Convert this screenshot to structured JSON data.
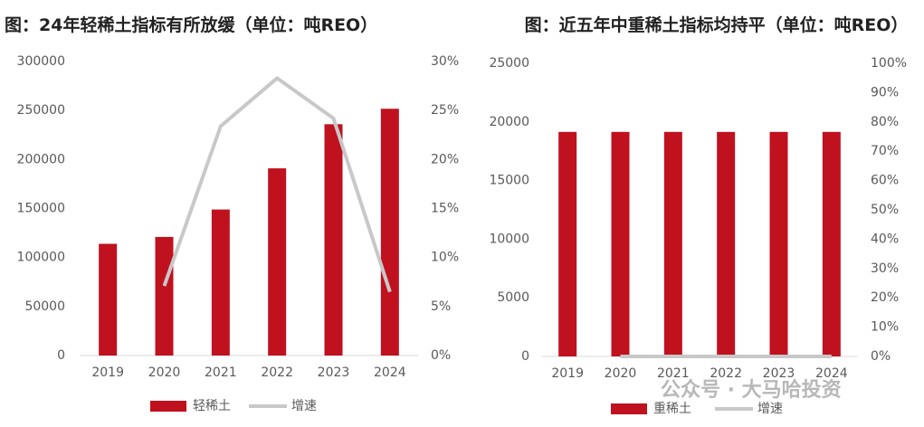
{
  "chart_data": [
    {
      "type": "bar",
      "title": "图：24年轻稀土指标有所放缓（单位：吨REO）",
      "categories": [
        "2019",
        "2020",
        "2021",
        "2022",
        "2023",
        "2024"
      ],
      "series": [
        {
          "name": "轻稀土",
          "color": "#c0111f",
          "values": [
            114000,
            121000,
            149000,
            191000,
            236000,
            251800
          ]
        },
        {
          "name": "增速",
          "color": "#c8c8c8",
          "axis": "y2",
          "values": [
            null,
            7.1,
            23.4,
            28.3,
            24.2,
            6.5
          ]
        }
      ],
      "ylim": [
        0,
        300000
      ],
      "yticks": [
        0,
        50000,
        100000,
        150000,
        200000,
        250000,
        300000
      ],
      "y2lim": [
        0,
        30
      ],
      "y2ticks": [
        {
          "value": 0,
          "label": "0%"
        },
        {
          "value": 5,
          "label": "5%"
        },
        {
          "value": 10,
          "label": "10%"
        },
        {
          "value": 15,
          "label": "15%"
        },
        {
          "value": 20,
          "label": "20%"
        },
        {
          "value": 25,
          "label": "25%"
        },
        {
          "value": 30,
          "label": "30%"
        }
      ],
      "grid": false
    },
    {
      "type": "bar",
      "title": "图：近五年中重稀土指标均持平（单位：吨REO）",
      "categories": [
        "2019",
        "2020",
        "2021",
        "2022",
        "2023",
        "2024"
      ],
      "series": [
        {
          "name": "重稀土",
          "color": "#c0111f",
          "values": [
            19150,
            19150,
            19150,
            19150,
            19150,
            19150
          ]
        },
        {
          "name": "增速",
          "color": "#c8c8c8",
          "axis": "y2",
          "values": [
            null,
            0,
            0,
            0,
            0,
            0
          ]
        }
      ],
      "ylim": [
        0,
        25000
      ],
      "yticks": [
        0,
        5000,
        10000,
        15000,
        20000,
        25000
      ],
      "y2lim": [
        0,
        100
      ],
      "y2ticks": [
        {
          "value": 0,
          "label": "0%"
        },
        {
          "value": 10,
          "label": "10%"
        },
        {
          "value": 20,
          "label": "20%"
        },
        {
          "value": 30,
          "label": "30%"
        },
        {
          "value": 40,
          "label": "40%"
        },
        {
          "value": 50,
          "label": "50%"
        },
        {
          "value": 60,
          "label": "60%"
        },
        {
          "value": 70,
          "label": "70%"
        },
        {
          "value": 80,
          "label": "80%"
        },
        {
          "value": 90,
          "label": "90%"
        },
        {
          "value": 100,
          "label": "100%"
        }
      ],
      "grid": false
    }
  ],
  "watermark": "公众号 · 大马哈投资"
}
